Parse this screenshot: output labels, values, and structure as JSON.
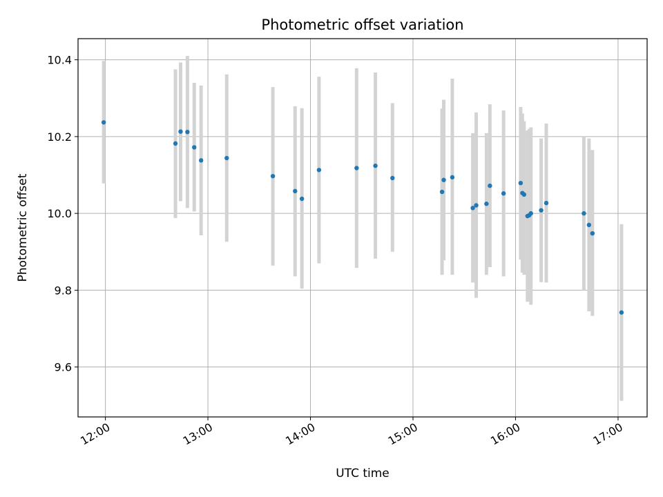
{
  "chart_data": {
    "type": "scatter",
    "title": "Photometric offset variation",
    "xlabel": "UTC time",
    "ylabel": "Photometric offset",
    "x_ticks": [
      "12:00",
      "13:00",
      "14:00",
      "15:00",
      "16:00",
      "17:00"
    ],
    "y_ticks": [
      "9.6",
      "9.8",
      "10.0",
      "10.2",
      "10.4"
    ],
    "xlim": [
      "11:44",
      "17:17"
    ],
    "ylim": [
      9.47,
      10.455
    ],
    "grid": true,
    "point_color": "#1f77b4",
    "errorbar_color": "#d3d3d3",
    "points": [
      {
        "time": "11:59",
        "value": 10.237,
        "low": 10.078,
        "high": 10.397
      },
      {
        "time": "12:41",
        "value": 10.182,
        "low": 9.988,
        "high": 10.375
      },
      {
        "time": "12:44",
        "value": 10.213,
        "low": 10.032,
        "high": 10.393
      },
      {
        "time": "12:48",
        "value": 10.212,
        "low": 10.014,
        "high": 10.41
      },
      {
        "time": "12:52",
        "value": 10.172,
        "low": 10.005,
        "high": 10.34
      },
      {
        "time": "12:56",
        "value": 10.138,
        "low": 9.943,
        "high": 10.333
      },
      {
        "time": "13:11",
        "value": 10.144,
        "low": 9.926,
        "high": 10.362
      },
      {
        "time": "13:38",
        "value": 10.097,
        "low": 9.864,
        "high": 10.329
      },
      {
        "time": "13:51",
        "value": 10.058,
        "low": 9.836,
        "high": 10.279
      },
      {
        "time": "13:55",
        "value": 10.038,
        "low": 9.804,
        "high": 10.274
      },
      {
        "time": "14:05",
        "value": 10.113,
        "low": 9.87,
        "high": 10.356
      },
      {
        "time": "14:27",
        "value": 10.118,
        "low": 9.858,
        "high": 10.378
      },
      {
        "time": "14:38",
        "value": 10.124,
        "low": 9.882,
        "high": 10.367
      },
      {
        "time": "14:48",
        "value": 10.092,
        "low": 9.9,
        "high": 10.287
      },
      {
        "time": "15:17",
        "value": 10.056,
        "low": 9.84,
        "high": 10.273
      },
      {
        "time": "15:18",
        "value": 10.087,
        "low": 9.878,
        "high": 10.296
      },
      {
        "time": "15:23",
        "value": 10.094,
        "low": 9.84,
        "high": 10.351
      },
      {
        "time": "15:35",
        "value": 10.014,
        "low": 9.82,
        "high": 10.209
      },
      {
        "time": "15:37",
        "value": 10.021,
        "low": 9.78,
        "high": 10.263
      },
      {
        "time": "15:43",
        "value": 10.025,
        "low": 9.84,
        "high": 10.209
      },
      {
        "time": "15:45",
        "value": 10.072,
        "low": 9.86,
        "high": 10.284
      },
      {
        "time": "15:53",
        "value": 10.052,
        "low": 9.836,
        "high": 10.268
      },
      {
        "time": "16:03",
        "value": 10.079,
        "low": 9.88,
        "high": 10.277
      },
      {
        "time": "16:04",
        "value": 10.053,
        "low": 9.846,
        "high": 10.26
      },
      {
        "time": "16:05",
        "value": 10.049,
        "low": 9.84,
        "high": 10.24
      },
      {
        "time": "16:07",
        "value": 9.993,
        "low": 9.77,
        "high": 10.216
      },
      {
        "time": "16:08",
        "value": 9.995,
        "low": 9.77,
        "high": 10.22
      },
      {
        "time": "16:09",
        "value": 10.0,
        "low": 9.762,
        "high": 10.224
      },
      {
        "time": "16:15",
        "value": 10.008,
        "low": 9.821,
        "high": 10.195
      },
      {
        "time": "16:18",
        "value": 10.027,
        "low": 9.82,
        "high": 10.234
      },
      {
        "time": "16:40",
        "value": 10.0,
        "low": 9.8,
        "high": 10.2
      },
      {
        "time": "16:43",
        "value": 9.97,
        "low": 9.745,
        "high": 10.195
      },
      {
        "time": "16:45",
        "value": 9.948,
        "low": 9.733,
        "high": 10.165
      },
      {
        "time": "17:02",
        "value": 9.742,
        "low": 9.512,
        "high": 9.972
      }
    ]
  }
}
